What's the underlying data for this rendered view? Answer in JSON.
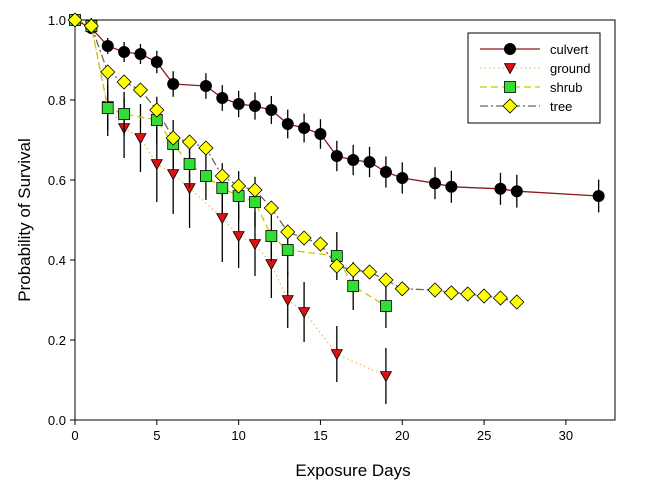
{
  "chart_data": {
    "type": "line",
    "title": "",
    "xlabel": "Exposure Days",
    "ylabel": "Probability of Survival",
    "xlim": [
      0,
      33
    ],
    "ylim": [
      0,
      1.0
    ],
    "xticks": [
      0,
      5,
      10,
      15,
      20,
      25,
      30
    ],
    "yticks": [
      0.0,
      0.2,
      0.4,
      0.6,
      0.8,
      1.0
    ],
    "x_tick_labels": [
      "0",
      "5",
      "10",
      "15",
      "20",
      "25",
      "30"
    ],
    "y_tick_labels": [
      "0.0",
      "0.2",
      "0.4",
      "0.6",
      "0.8",
      "1.0"
    ],
    "grid": false,
    "legend_position": "top-right",
    "series": [
      {
        "name": "culvert",
        "color": "#8b1a1a",
        "marker_fill": "#000000",
        "marker": "circle",
        "line_style": "solid",
        "x": [
          0,
          1,
          2,
          3,
          4,
          5,
          6,
          8,
          9,
          10,
          11,
          12,
          13,
          14,
          15,
          16,
          17,
          18,
          19,
          20,
          22,
          23,
          26,
          27,
          32
        ],
        "y": [
          1.0,
          0.98,
          0.935,
          0.92,
          0.915,
          0.895,
          0.84,
          0.835,
          0.805,
          0.79,
          0.785,
          0.775,
          0.74,
          0.73,
          0.715,
          0.66,
          0.65,
          0.645,
          0.62,
          0.605,
          0.592,
          0.583,
          0.578,
          0.572,
          0.56
        ],
        "err": [
          0,
          0.012,
          0.02,
          0.025,
          0.025,
          0.028,
          0.032,
          0.032,
          0.032,
          0.033,
          0.034,
          0.035,
          0.036,
          0.036,
          0.037,
          0.038,
          0.038,
          0.038,
          0.039,
          0.039,
          0.04,
          0.04,
          0.04,
          0.041,
          0.041
        ]
      },
      {
        "name": "ground",
        "color": "#e8c070",
        "marker_fill": "#dd1111",
        "marker": "triangle-down",
        "line_style": "dotted",
        "x": [
          0,
          1,
          2,
          3,
          4,
          5,
          6,
          7,
          9,
          10,
          11,
          12,
          13,
          14,
          16,
          19
        ],
        "y": [
          1.0,
          0.985,
          0.785,
          0.73,
          0.705,
          0.64,
          0.615,
          0.58,
          0.505,
          0.46,
          0.44,
          0.39,
          0.3,
          0.27,
          0.165,
          0.11
        ],
        "err": [
          0,
          0.02,
          0.075,
          0.075,
          0.085,
          0.095,
          0.1,
          0.1,
          0.11,
          0.08,
          0.08,
          0.085,
          0.07,
          0.075,
          0.07,
          0.07
        ]
      },
      {
        "name": "shrub",
        "color": "#c8c800",
        "marker_fill": "#33dd33",
        "marker": "square",
        "line_style": "dashed",
        "x": [
          0,
          1,
          2,
          3,
          5,
          6,
          7,
          8,
          9,
          10,
          11,
          12,
          13,
          16,
          17,
          19
        ],
        "y": [
          1.0,
          0.985,
          0.78,
          0.765,
          0.75,
          0.69,
          0.64,
          0.61,
          0.58,
          0.56,
          0.545,
          0.46,
          0.425,
          0.41,
          0.335,
          0.285
        ],
        "err": [
          0,
          0.02,
          0.055,
          0.055,
          0.058,
          0.06,
          0.06,
          0.06,
          0.062,
          0.062,
          0.063,
          0.063,
          0.063,
          0.06,
          0.06,
          0.055
        ]
      },
      {
        "name": "tree",
        "color": "#6a6a4a",
        "marker_fill": "#ffff00",
        "marker": "diamond",
        "line_style": "dashdot",
        "x": [
          0,
          1,
          2,
          3,
          4,
          5,
          6,
          7,
          8,
          9,
          10,
          11,
          12,
          13,
          14,
          15,
          16,
          17,
          18,
          19,
          20,
          22,
          23,
          24,
          25,
          26,
          27
        ],
        "y": [
          1.0,
          0.985,
          0.87,
          0.845,
          0.825,
          0.775,
          0.705,
          0.695,
          0.68,
          0.61,
          0.585,
          0.575,
          0.53,
          0.47,
          0.455,
          0.44,
          0.385,
          0.375,
          0.37,
          0.35,
          0.328,
          0.325,
          0.318,
          0.315,
          0.31,
          0.305,
          0.295
        ],
        "err": []
      }
    ]
  }
}
